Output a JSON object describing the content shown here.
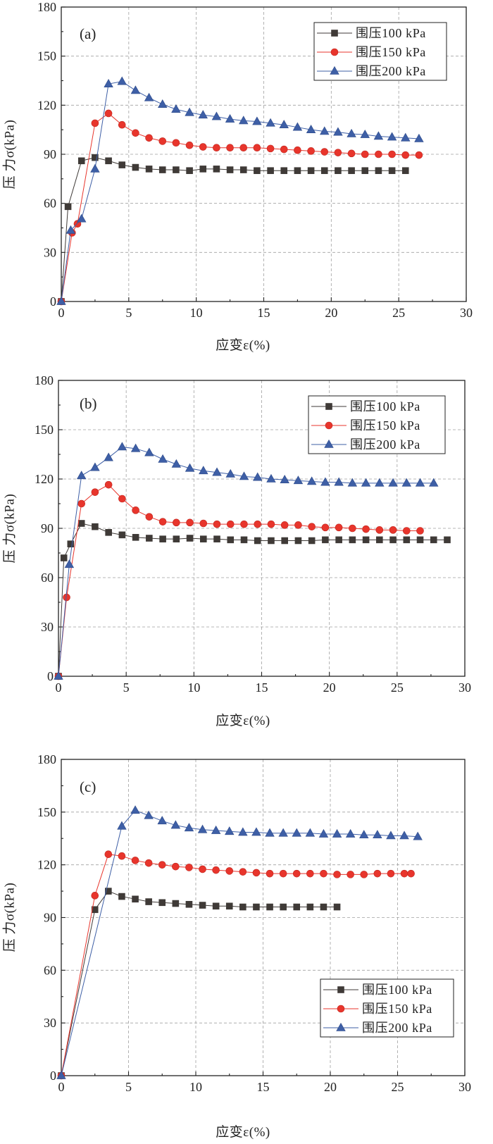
{
  "chart_data": [
    {
      "type": "line",
      "panel_label": "(a)",
      "xlabel": "应变ε(%)",
      "ylabel": "压 力σ(kPa)",
      "xlim": [
        0,
        30
      ],
      "ylim": [
        0,
        180
      ],
      "xticks": [
        0,
        5,
        10,
        15,
        20,
        25,
        30
      ],
      "yticks": [
        0,
        30,
        60,
        90,
        120,
        150,
        180
      ],
      "grid": true,
      "legend_position": "top-right",
      "series": [
        {
          "name": "围压100 kPa",
          "marker": "square",
          "color": "#3f3a37",
          "x": [
            0,
            0.5,
            1.5,
            2.5,
            3.5,
            4.5,
            5.5,
            6.5,
            7.5,
            8.5,
            9.5,
            10.5,
            11.5,
            12.5,
            13.5,
            14.5,
            15.5,
            16.5,
            17.5,
            18.5,
            19.5,
            20.5,
            21.5,
            22.5,
            23.5,
            24.5,
            25.5
          ],
          "y": [
            0,
            58,
            86,
            88,
            86,
            83.5,
            82,
            81,
            80.5,
            80.5,
            80,
            81,
            81,
            80.5,
            80.5,
            80,
            80,
            80,
            80,
            80,
            80,
            80,
            80,
            80,
            80,
            80,
            80
          ]
        },
        {
          "name": "围压150 kPa",
          "marker": "circle",
          "color": "#e8352c",
          "x": [
            0,
            0.8,
            1.2,
            2.5,
            3.5,
            4.5,
            5.5,
            6.5,
            7.5,
            8.5,
            9.5,
            10.5,
            11.5,
            12.5,
            13.5,
            14.5,
            15.5,
            16.5,
            17.5,
            18.5,
            19.5,
            20.5,
            21.5,
            22.5,
            23.5,
            24.5,
            25.5,
            26.5
          ],
          "y": [
            0,
            42,
            47.5,
            109,
            115,
            108,
            103,
            100,
            98,
            97,
            95.5,
            94.5,
            94,
            94,
            94,
            94,
            93.5,
            93,
            92.5,
            92,
            91.5,
            91,
            90.5,
            90,
            90,
            90,
            89.5,
            89.5
          ]
        },
        {
          "name": "围压200 kPa",
          "marker": "triangle",
          "color": "#3e5fa6",
          "x": [
            0,
            0.7,
            1.5,
            2.5,
            3.5,
            4.5,
            5.5,
            6.5,
            7.5,
            8.5,
            9.5,
            10.5,
            11.5,
            12.5,
            13.5,
            14.5,
            15.5,
            16.5,
            17.5,
            18.5,
            19.5,
            20.5,
            21.5,
            22.5,
            23.5,
            24.5,
            25.5,
            26.5
          ],
          "y": [
            0,
            43.5,
            50.5,
            81,
            133,
            134.5,
            129,
            124.5,
            120.5,
            117.5,
            115.5,
            114,
            113,
            111.5,
            110.5,
            110,
            109,
            108,
            106.5,
            105,
            104,
            103.5,
            102.5,
            102,
            101,
            100.5,
            100,
            99.5
          ]
        }
      ]
    },
    {
      "type": "line",
      "panel_label": "(b)",
      "xlabel": "应变ε(%)",
      "ylabel": "压 力σ(kPa)",
      "xlim": [
        0,
        30
      ],
      "ylim": [
        0,
        180
      ],
      "xticks": [
        0,
        5,
        10,
        15,
        20,
        25,
        30
      ],
      "yticks": [
        0,
        30,
        60,
        90,
        120,
        150,
        180
      ],
      "grid": true,
      "legend_position": "top-right",
      "series": [
        {
          "name": "围压100 kPa",
          "marker": "square",
          "color": "#3f3a37",
          "x": [
            0,
            0.4,
            0.9,
            1.7,
            2.7,
            3.7,
            4.7,
            5.7,
            6.7,
            7.7,
            8.7,
            9.7,
            10.7,
            11.7,
            12.7,
            13.7,
            14.7,
            15.7,
            16.7,
            17.7,
            18.7,
            19.7,
            20.7,
            21.7,
            22.7,
            23.7,
            24.7,
            25.7,
            26.7,
            27.7,
            28.7
          ],
          "y": [
            0,
            72,
            80.5,
            93,
            91,
            87.5,
            86,
            84.5,
            84,
            83.5,
            83.5,
            84,
            83.5,
            83.5,
            83,
            83,
            82.5,
            82.5,
            82.5,
            82.5,
            82.5,
            83,
            83,
            83,
            83,
            83,
            83,
            83,
            83,
            83,
            83
          ]
        },
        {
          "name": "围压150 kPa",
          "marker": "circle",
          "color": "#e8352c",
          "x": [
            0,
            0.6,
            1.7,
            2.7,
            3.7,
            4.7,
            5.7,
            6.7,
            7.7,
            8.7,
            9.7,
            10.7,
            11.7,
            12.7,
            13.7,
            14.7,
            15.7,
            16.7,
            17.7,
            18.7,
            19.7,
            20.7,
            21.7,
            22.7,
            23.7,
            24.7,
            25.7,
            26.7
          ],
          "y": [
            0,
            48,
            105,
            112,
            116.5,
            108,
            101,
            97,
            94,
            93.5,
            93.5,
            93,
            92.5,
            92.5,
            92.5,
            92.5,
            92.5,
            92,
            92,
            91,
            90.5,
            90.5,
            90,
            89.5,
            89,
            89,
            88.5,
            88.5
          ]
        },
        {
          "name": "围压200 kPa",
          "marker": "triangle",
          "color": "#3e5fa6",
          "x": [
            0,
            0.8,
            1.7,
            2.7,
            3.7,
            4.7,
            5.7,
            6.7,
            7.7,
            8.7,
            9.7,
            10.7,
            11.7,
            12.7,
            13.7,
            14.7,
            15.7,
            16.7,
            17.7,
            18.7,
            19.7,
            20.7,
            21.7,
            22.7,
            23.7,
            24.7,
            25.7,
            26.7,
            27.7
          ],
          "y": [
            0,
            68,
            122,
            127,
            133,
            139.5,
            138.5,
            136,
            132,
            129,
            126.5,
            125,
            124,
            123,
            121.5,
            121,
            120,
            119.5,
            119,
            118.5,
            118,
            118,
            117.5,
            117.5,
            117.5,
            117.5,
            117.5,
            117.5,
            117.5
          ]
        }
      ]
    },
    {
      "type": "line",
      "panel_label": "(c)",
      "xlabel": "应变ε(%)",
      "ylabel": "压 力σ(kPa)",
      "xlim": [
        0,
        30
      ],
      "ylim": [
        0,
        180
      ],
      "xticks": [
        0,
        5,
        10,
        15,
        20,
        25,
        30
      ],
      "yticks": [
        0,
        30,
        60,
        90,
        120,
        150,
        180
      ],
      "grid": true,
      "legend_position": "bottom-right",
      "series": [
        {
          "name": "围压100 kPa",
          "marker": "square",
          "color": "#3f3a37",
          "x": [
            0,
            2.5,
            3.5,
            4.5,
            5.5,
            6.5,
            7.5,
            8.5,
            9.5,
            10.5,
            11.5,
            12.5,
            13.5,
            14.5,
            15.5,
            16.5,
            17.5,
            18.5,
            19.5,
            20.5
          ],
          "y": [
            0,
            94.5,
            105,
            102,
            100.5,
            99,
            98.5,
            98,
            97.5,
            97,
            96.5,
            96.5,
            96,
            96,
            96,
            96,
            96,
            96,
            96,
            96
          ]
        },
        {
          "name": "围压150 kPa",
          "marker": "circle",
          "color": "#e8352c",
          "x": [
            0,
            2.5,
            3.5,
            4.5,
            5.5,
            6.5,
            7.5,
            8.5,
            9.5,
            10.5,
            11.5,
            12.5,
            13.5,
            14.5,
            15.5,
            16.5,
            17.5,
            18.5,
            19.5,
            20.5,
            21.5,
            22.5,
            23.5,
            24.5,
            25.5,
            26
          ],
          "y": [
            0,
            102.5,
            126,
            125,
            122.5,
            121,
            120,
            119,
            118.5,
            117.5,
            117,
            116.5,
            116,
            115.5,
            115,
            115,
            115,
            115,
            115,
            114.5,
            114.5,
            114.5,
            115,
            115,
            115,
            115
          ]
        },
        {
          "name": "围压200 kPa",
          "marker": "triangle",
          "color": "#3e5fa6",
          "x": [
            0,
            4.5,
            5.5,
            6.5,
            7.5,
            8.5,
            9.5,
            10.5,
            11.5,
            12.5,
            13.5,
            14.5,
            15.5,
            16.5,
            17.5,
            18.5,
            19.5,
            20.5,
            21.5,
            22.5,
            23.5,
            24.5,
            25.5,
            26.5
          ],
          "y": [
            0,
            142,
            151,
            148,
            145,
            142.5,
            141,
            140,
            139.5,
            139,
            138.5,
            138.5,
            138,
            138,
            138,
            138,
            137.5,
            137.5,
            137.5,
            137,
            137,
            136.5,
            136.5,
            136
          ]
        }
      ]
    }
  ]
}
